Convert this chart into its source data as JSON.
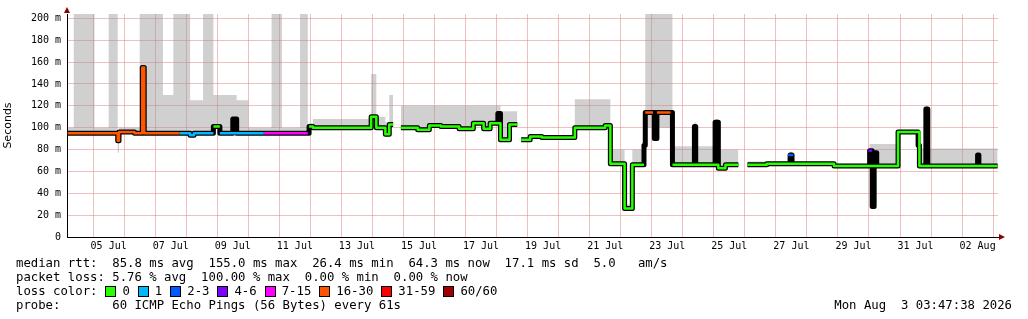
{
  "chart_data": {
    "type": "step",
    "ylabel": "Seconds",
    "legend_title": "loss color:",
    "legend": "bottom",
    "grid": true,
    "xlim": [
      "2026-07-04T03:47",
      "2026-08-03T03:47"
    ],
    "xticks": [
      {
        "value": "2026-07-05T00:00",
        "label": null
      },
      {
        "value": "2026-07-05T12:00",
        "label": "05 Jul"
      },
      {
        "value": "2026-07-06T00:00",
        "label": null
      },
      {
        "value": "2026-07-07T00:00",
        "label": null
      },
      {
        "value": "2026-07-07T12:00",
        "label": "07 Jul"
      },
      {
        "value": "2026-07-08T00:00",
        "label": null
      },
      {
        "value": "2026-07-09T00:00",
        "label": null
      },
      {
        "value": "2026-07-09T12:00",
        "label": "09 Jul"
      },
      {
        "value": "2026-07-10T00:00",
        "label": null
      },
      {
        "value": "2026-07-11T00:00",
        "label": null
      },
      {
        "value": "2026-07-11T12:00",
        "label": "11 Jul"
      },
      {
        "value": "2026-07-12T00:00",
        "label": null
      },
      {
        "value": "2026-07-13T00:00",
        "label": null
      },
      {
        "value": "2026-07-13T12:00",
        "label": "13 Jul"
      },
      {
        "value": "2026-07-14T00:00",
        "label": null
      },
      {
        "value": "2026-07-15T00:00",
        "label": null
      },
      {
        "value": "2026-07-15T12:00",
        "label": "15 Jul"
      },
      {
        "value": "2026-07-16T00:00",
        "label": null
      },
      {
        "value": "2026-07-17T00:00",
        "label": null
      },
      {
        "value": "2026-07-17T12:00",
        "label": "17 Jul"
      },
      {
        "value": "2026-07-18T00:00",
        "label": null
      },
      {
        "value": "2026-07-19T00:00",
        "label": null
      },
      {
        "value": "2026-07-19T12:00",
        "label": "19 Jul"
      },
      {
        "value": "2026-07-20T00:00",
        "label": null
      },
      {
        "value": "2026-07-21T00:00",
        "label": null
      },
      {
        "value": "2026-07-21T12:00",
        "label": "21 Jul"
      },
      {
        "value": "2026-07-22T00:00",
        "label": null
      },
      {
        "value": "2026-07-23T00:00",
        "label": null
      },
      {
        "value": "2026-07-23T12:00",
        "label": "23 Jul"
      },
      {
        "value": "2026-07-24T00:00",
        "label": null
      },
      {
        "value": "2026-07-25T00:00",
        "label": null
      },
      {
        "value": "2026-07-25T12:00",
        "label": "25 Jul"
      },
      {
        "value": "2026-07-26T00:00",
        "label": null
      },
      {
        "value": "2026-07-27T00:00",
        "label": null
      },
      {
        "value": "2026-07-27T12:00",
        "label": "27 Jul"
      },
      {
        "value": "2026-07-28T00:00",
        "label": null
      },
      {
        "value": "2026-07-29T00:00",
        "label": null
      },
      {
        "value": "2026-07-29T12:00",
        "label": "29 Jul"
      },
      {
        "value": "2026-07-30T00:00",
        "label": null
      },
      {
        "value": "2026-07-31T00:00",
        "label": null
      },
      {
        "value": "2026-07-31T12:00",
        "label": "31 Jul"
      },
      {
        "value": "2026-08-01T00:00",
        "label": null
      },
      {
        "value": "2026-08-02T00:00",
        "label": null
      },
      {
        "value": "2026-08-02T12:00",
        "label": "02 Aug"
      },
      {
        "value": "2026-08-03T00:00",
        "label": null
      }
    ],
    "ylim": [
      0,
      204
    ],
    "yticks": [
      0,
      {
        "value": 20,
        "label": "20 m"
      },
      {
        "value": 40,
        "label": "40 m"
      },
      {
        "value": 60,
        "label": "60 m"
      },
      {
        "value": 80,
        "label": "80 m"
      },
      {
        "value": 100,
        "label": "100 m"
      },
      {
        "value": 120,
        "label": "120 m"
      },
      {
        "value": 140,
        "label": "140 m"
      },
      {
        "value": 160,
        "label": "160 m"
      },
      {
        "value": 180,
        "label": "180 m"
      },
      {
        "value": 200,
        "label": "200 m"
      }
    ],
    "annotations": [
      "median rtt:  85.8 ms avg  155.0 ms max  26.4 ms min  64.3 ms now  17.1 ms sd  5.0   am/s",
      "packet loss: 5.76 % avg  100.00 % max  0.00 % min  0.00 % now",
      "probe:       60 ICMP Echo Pings (56 Bytes) every 61s",
      "Mon Aug  3 03:47:38 2026"
    ],
    "series": [
      {
        "color": "#000000",
        "x": [
          "2026-07-04T04:20",
          "2026-07-04T09:00",
          "2026-07-04T18:00",
          "2026-07-05T01:00",
          "2026-07-05T12:00",
          "2026-07-05T19:00",
          "2026-07-05T20:00",
          "2026-07-06T08:00",
          "2026-07-06T12:00",
          "2026-07-06T14:00",
          "2026-07-06T15:30",
          "2026-07-07T00:00",
          "2026-07-07T06:00",
          "2026-07-07T14:00",
          "2026-07-08T03:00",
          "2026-07-08T06:00",
          "2026-07-08T13:00",
          "2026-07-08T21:00",
          "2026-07-09T02:00",
          "2026-07-09T12:00",
          "2026-07-09T15:00",
          "2026-07-10T00:00",
          "2026-07-10T18:00",
          "2026-07-11T02:00",
          "2026-07-11T16:00",
          "2026-07-11T22:00",
          "2026-07-11T23:00",
          "2026-07-12T02:00",
          "2026-07-13T22:00",
          "2026-07-13T23:00",
          "2026-07-14T02:00",
          "2026-07-14T03:00",
          "2026-07-14T10:00",
          "2026-07-14T13:00",
          "2026-07-14T16:00",
          "2026-07-14T19:00",
          "2026-07-14T22:00",
          "2026-07-15T11:00",
          "2026-07-15T20:00",
          "2026-07-16T05:00",
          "2026-07-16T19:00",
          "2026-07-17T06:00",
          "2026-07-17T14:00",
          "2026-07-17T19:00",
          "2026-07-18T01:00",
          "2026-07-18T03:00",
          "2026-07-18T10:00",
          "2026-07-18T16:00",
          "2026-07-18T17:30",
          "2026-07-18T19:00",
          "2026-07-19T02:00",
          "2026-07-19T11:00",
          "2026-07-20T10:00",
          "2026-07-20T12:30",
          "2026-07-21T12:00",
          "2026-07-21T16:00",
          "2026-07-22T00:30",
          "2026-07-22T03:00",
          "2026-07-22T09:00",
          "2026-07-22T18:00",
          "2026-07-22T19:00",
          "2026-07-23T01:00",
          "2026-07-23T02:00",
          "2026-07-23T04:00",
          "2026-07-23T14:30",
          "2026-07-23T16:00",
          "2026-07-24T09:00",
          "2026-07-24T10:00",
          "2026-07-25T01:00",
          "2026-07-25T03:30",
          "2026-07-25T09:00",
          "2026-07-25T19:00",
          "2026-07-25T22:00",
          "2026-07-26T02:00",
          "2026-07-26T17:00",
          "2026-07-27T11:00",
          "2026-07-27T12:30",
          "2026-07-28T17:00",
          "2026-07-28T21:00",
          "2026-07-30T00:30",
          "2026-07-30T02:30",
          "2026-07-30T04:00",
          "2026-07-30T06:00",
          "2026-07-30T22:30",
          "2026-07-31T13:00",
          "2026-07-31T14:00",
          "2026-07-31T15:00",
          "2026-07-31T20:00",
          "2026-07-31T21:30",
          "2026-08-02T12:00",
          "2026-08-02T13:00",
          "2026-08-03T03:30"
        ],
        "values": [
          95,
          95,
          95,
          95,
          95,
          88,
          96,
          95,
          95,
          155,
          95,
          95,
          95,
          95,
          93,
          95,
          95,
          101,
          95,
          108,
          95,
          95,
          95,
          95,
          95,
          95,
          101,
          100,
          100,
          110,
          110,
          100,
          94,
          103,
          103,
          null,
          100,
          98,
          102,
          101,
          99,
          104,
          99,
          104,
          113,
          89,
          103,
          103,
          null,
          89,
          92,
          91,
          91,
          100,
          102,
          67,
          67,
          26,
          66,
          84,
          114,
          114,
          90,
          114,
          114,
          66,
          101,
          66,
          105,
          63,
          66,
          66,
          null,
          66,
          67,
          75,
          67,
          67,
          65,
          79,
          28,
          77,
          65,
          96,
          96,
          84,
          65,
          117,
          65,
          75,
          65,
          65
        ],
        "lower": [
          94,
          94,
          94,
          94,
          94,
          77,
          95,
          94,
          94,
          95,
          94,
          94,
          94,
          94,
          92,
          94,
          94,
          100,
          94,
          95,
          94,
          94,
          94,
          94,
          94,
          94,
          100,
          99,
          99,
          100,
          100,
          98,
          92,
          100,
          100,
          null,
          98,
          96,
          100,
          99,
          97,
          102,
          97,
          102,
          102,
          88,
          101,
          101,
          null,
          88,
          91,
          90,
          90,
          99,
          100,
          66,
          66,
          25,
          65,
          67,
          100,
          100,
          88,
          100,
          100,
          65,
          66,
          65,
          66,
          62,
          65,
          65,
          null,
          65,
          66,
          67,
          66,
          66,
          64,
          65,
          27,
          65,
          64,
          95,
          95,
          66,
          64,
          65,
          64,
          65,
          64,
          64
        ],
        "upper": [
          100,
          204,
          204,
          100,
          204,
          95,
          100,
          100,
          204,
          204,
          204,
          204,
          130,
          204,
          125,
          125,
          204,
          130,
          130,
          130,
          125,
          100,
          204,
          100,
          204,
          100,
          104,
          108,
          108,
          149,
          149,
          110,
          105,
          130,
          110,
          null,
          120,
          120,
          120,
          120,
          120,
          120,
          120,
          120,
          120,
          115,
          115,
          115,
          null,
          90,
          93,
          93,
          93,
          126,
          126,
          80,
          80,
          30,
          80,
          100,
          204,
          204,
          204,
          204,
          204,
          83,
          105,
          83,
          108,
          80,
          80,
          80,
          null,
          69,
          69,
          78,
          69,
          69,
          67,
          85,
          85,
          85,
          85,
          98,
          98,
          98,
          81,
          120,
          81,
          81,
          81,
          116
        ]
      },
      {
        "name": "0",
        "color": "#26ff00",
        "x": [
          "2026-07-08T21:00",
          "2026-07-09T02:00",
          "2026-07-09T03:00",
          "2026-07-11T23:00",
          "2026-07-12T02:00",
          "2026-07-13T22:00",
          "2026-07-13T23:00",
          "2026-07-14T03:00",
          "2026-07-14T10:00",
          "2026-07-14T13:00",
          "2026-07-14T16:00",
          "2026-07-14T19:00",
          "2026-07-14T22:00",
          "2026-07-15T11:00",
          "2026-07-15T20:00",
          "2026-07-16T05:00",
          "2026-07-16T19:00",
          "2026-07-17T06:00",
          "2026-07-17T14:00",
          "2026-07-17T19:00",
          "2026-07-18T03:00",
          "2026-07-18T10:00",
          "2026-07-18T16:00",
          "2026-07-18T17:30",
          "2026-07-18T19:00",
          "2026-07-19T02:00",
          "2026-07-19T11:00",
          "2026-07-20T10:00",
          "2026-07-20T12:30",
          "2026-07-21T12:00",
          "2026-07-21T16:00",
          "2026-07-22T00:30",
          "2026-07-22T03:00",
          "2026-07-22T09:00",
          "2026-07-22T18:00",
          "2026-07-22T19:00",
          "2026-07-23T16:00",
          "2026-07-25T03:30",
          "2026-07-25T09:00",
          "2026-07-25T19:00",
          "2026-07-25T22:00",
          "2026-07-26T02:00",
          "2026-07-26T17:00",
          "2026-07-28T17:00",
          "2026-07-28T21:00",
          "2026-07-30T22:30",
          "2026-07-31T13:00",
          "2026-07-31T15:00",
          "2026-08-03T03:30"
        ],
        "values": [
          101,
          101,
          null,
          101,
          100,
          100,
          110,
          100,
          94,
          103,
          103,
          null,
          100,
          98,
          102,
          101,
          99,
          104,
          99,
          104,
          89,
          103,
          103,
          null,
          89,
          92,
          91,
          91,
          100,
          102,
          67,
          67,
          26,
          66,
          66,
          null,
          66,
          63,
          66,
          66,
          null,
          66,
          67,
          67,
          65,
          96,
          96,
          65,
          65
        ]
      },
      {
        "name": "1",
        "color": "#00b8ff",
        "x": [
          "2026-07-07T19:00",
          "2026-07-08T03:00",
          "2026-07-08T06:00",
          "2026-07-08T21:00",
          "2026-07-08T22:00",
          "2026-07-09T02:00",
          "2026-07-10T12:00"
        ],
        "values": [
          95,
          93,
          95,
          95,
          null,
          95,
          95
        ]
      },
      {
        "name": "2-3",
        "color": "#0059ff",
        "x": [
          "2026-07-27T09:30",
          "2026-07-27T13:30"
        ],
        "values": [
          75,
          75
        ]
      },
      {
        "name": "4-6",
        "color": "#7e00ff",
        "x": [
          "2026-07-29T23:30",
          "2026-07-30T02:30"
        ],
        "values": [
          79,
          79
        ]
      },
      {
        "name": "7-15",
        "color": "#ff00ff",
        "x": [
          "2026-07-10T12:00",
          "2026-07-11T22:00"
        ],
        "values": [
          95,
          95
        ]
      },
      {
        "name": "16-30",
        "color": "#ff5500",
        "x": [
          "2026-07-04T04:20",
          "2026-07-05T19:00",
          "2026-07-05T20:00",
          "2026-07-06T08:00",
          "2026-07-06T14:00",
          "2026-07-06T15:30",
          "2026-07-07T19:00",
          "2026-07-07T20:00",
          "2026-07-22T19:00",
          "2026-07-23T01:00",
          "2026-07-23T02:00",
          "2026-07-23T04:00",
          "2026-07-23T14:30"
        ],
        "values": [
          95,
          88,
          96,
          95,
          155,
          95,
          95,
          null,
          114,
          114,
          null,
          114,
          114
        ]
      },
      {
        "name": "31-59",
        "color": "#ff0000"
      },
      {
        "name": "60/60",
        "color": "#a00000"
      }
    ]
  }
}
